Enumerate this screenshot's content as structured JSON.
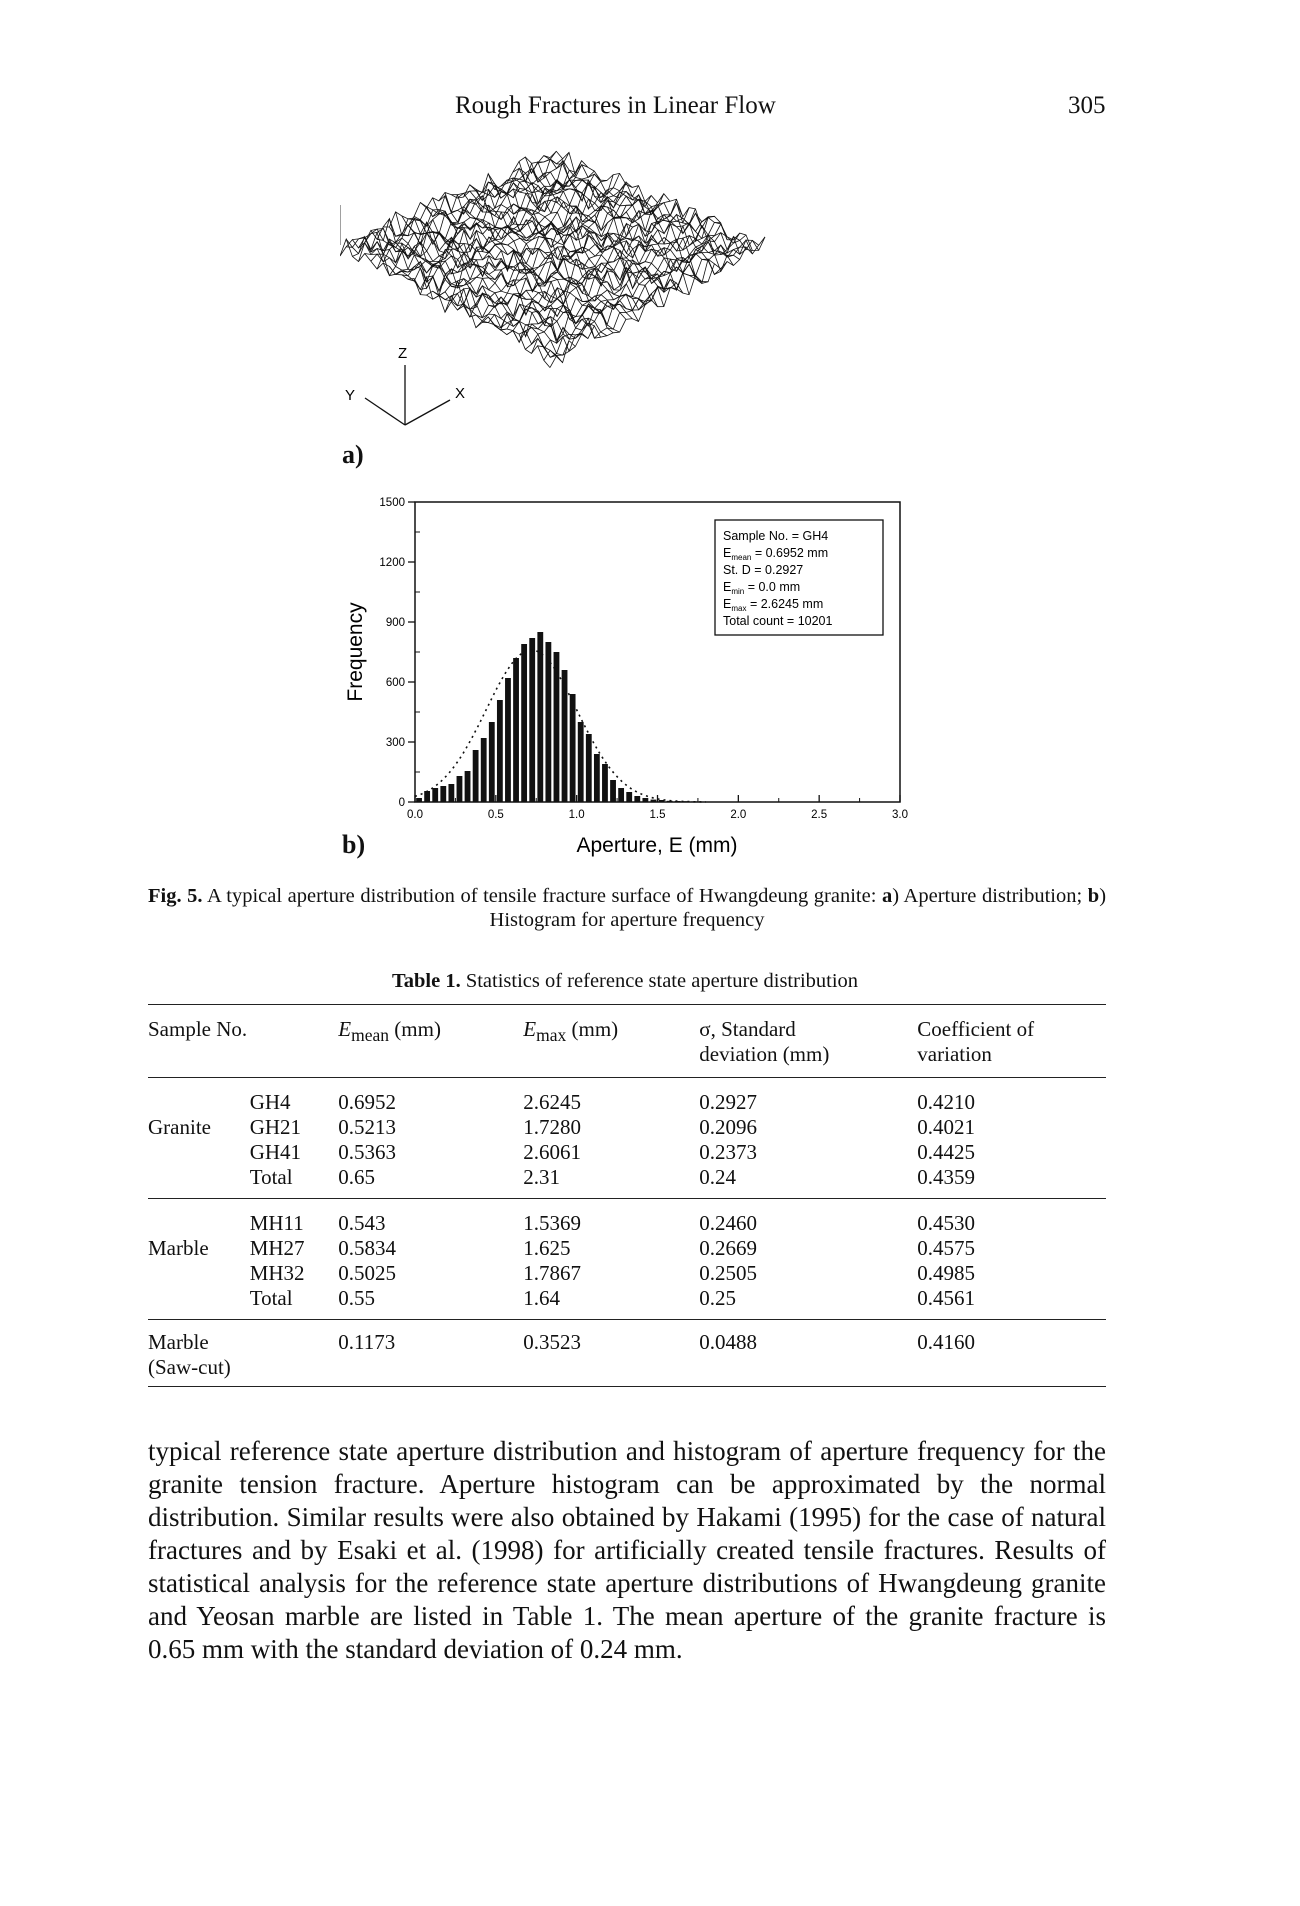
{
  "running_head": {
    "title": "Rough Fractures in Linear Flow",
    "page": "305"
  },
  "figure": {
    "panel_a": {
      "label": "a)",
      "axes": {
        "z": "Z",
        "y": "Y",
        "x": "X"
      }
    },
    "panel_b": {
      "label": "b)",
      "legend_lines": [
        "Sample No. = GH4",
        "E_mean = 0.6952 mm",
        "St. D = 0.2927",
        "E_min = 0.0 mm",
        "E_max = 2.6245 mm",
        "Total count = 10201"
      ]
    },
    "caption_label": "Fig. 5.",
    "caption_text": "A typical aperture distribution of tensile fracture surface of Hwangdeung granite:",
    "caption_a_label": "a",
    "caption_a_text": ") Aperture distribution;",
    "caption_b_label": "b",
    "caption_b_text": ") Histogram for aperture frequency"
  },
  "chart_data": {
    "type": "bar",
    "xlabel": "Aperture, E (mm)",
    "ylabel": "Frequency",
    "xlim": [
      0,
      3.0
    ],
    "ylim": [
      0,
      1500
    ],
    "xticks": [
      "0.0",
      "0.5",
      "1.0",
      "1.5",
      "2.0",
      "2.5",
      "3.0"
    ],
    "yticks": [
      "0",
      "300",
      "600",
      "900",
      "1200",
      "1500"
    ],
    "bin_width": 0.05,
    "x": [
      0.0,
      0.05,
      0.1,
      0.15,
      0.2,
      0.25,
      0.3,
      0.35,
      0.4,
      0.45,
      0.5,
      0.55,
      0.6,
      0.65,
      0.7,
      0.75,
      0.8,
      0.85,
      0.9,
      0.95,
      1.0,
      1.05,
      1.1,
      1.15,
      1.2,
      1.25,
      1.3,
      1.35,
      1.4,
      1.45,
      1.5,
      1.55,
      1.6,
      1.65,
      1.7,
      1.75
    ],
    "values": [
      20,
      55,
      70,
      80,
      90,
      130,
      155,
      260,
      320,
      400,
      510,
      620,
      720,
      790,
      820,
      850,
      800,
      750,
      660,
      540,
      400,
      340,
      240,
      190,
      110,
      70,
      50,
      30,
      20,
      12,
      10,
      6,
      5,
      4,
      3,
      2
    ],
    "fit_curve": "normal distribution (dotted)",
    "legend_position": "top-right"
  },
  "table": {
    "caption_label": "Table 1.",
    "caption_text": "Statistics of reference state aperture distribution",
    "headers": {
      "sample": "Sample No.",
      "emean_sym": "E",
      "emean_sub": "mean",
      "emean_unit": " (mm)",
      "emax_sym": "E",
      "emax_sub": "max",
      "emax_unit": " (mm)",
      "sd_line1": "σ, Standard",
      "sd_line2": "deviation (mm)",
      "cv_line1": "Coefficient of",
      "cv_line2": "variation"
    },
    "granite": {
      "group": "Granite",
      "rows": [
        [
          "GH4",
          "0.6952",
          "2.6245",
          "0.2927",
          "0.4210"
        ],
        [
          "GH21",
          "0.5213",
          "1.7280",
          "0.2096",
          "0.4021"
        ],
        [
          "GH41",
          "0.5363",
          "2.6061",
          "0.2373",
          "0.4425"
        ],
        [
          "Total",
          "0.65",
          "2.31",
          "0.24",
          "0.4359"
        ]
      ]
    },
    "marble": {
      "group": "Marble",
      "rows": [
        [
          "MH11",
          "0.543",
          "1.5369",
          "0.2460",
          "0.4530"
        ],
        [
          "MH27",
          "0.5834",
          "1.625",
          "0.2669",
          "0.4575"
        ],
        [
          "MH32",
          "0.5025",
          "1.7867",
          "0.2505",
          "0.4985"
        ],
        [
          "Total",
          "0.55",
          "1.64",
          "0.25",
          "0.4561"
        ]
      ]
    },
    "sawcut": {
      "group_line1": "Marble",
      "group_line2": "(Saw-cut)",
      "values": [
        "0.1173",
        "0.3523",
        "0.0488",
        "0.4160"
      ]
    }
  },
  "body_text": "typical reference state aperture distribution and histogram of aperture frequency for the granite tension fracture. Aperture histogram can be approximated by the normal distribution. Similar results were also obtained by Hakami (1995) for the case of natural fractures and by Esaki et al. (1998) for artificially created tensile fractures. Results of statistical analysis for the reference state aperture distributions of Hwangdeung granite and Yeosan marble are listed in Table 1. The mean aperture of the granite fracture is 0.65 mm with the standard deviation of 0.24 mm."
}
